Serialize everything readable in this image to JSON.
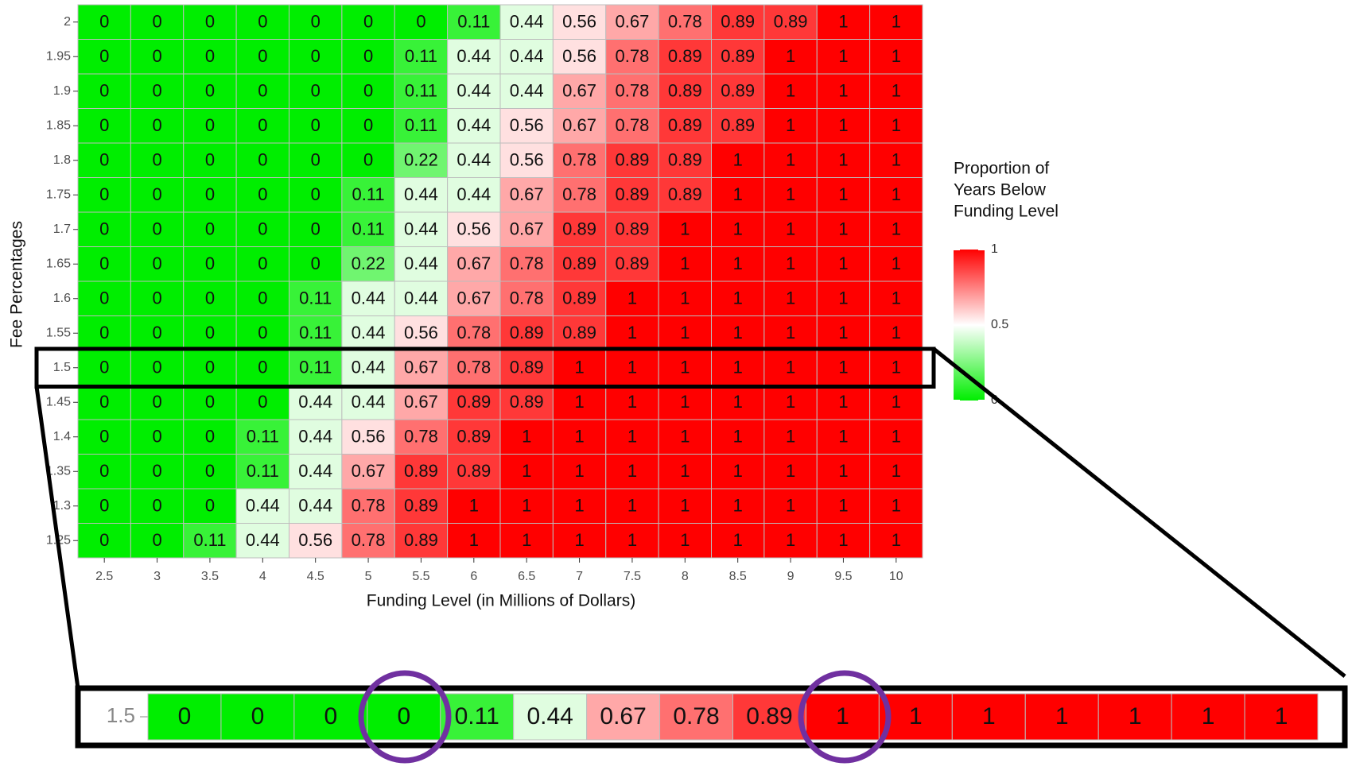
{
  "chart_data": {
    "type": "heatmap",
    "xlabel": "Funding Level (in Millions of Dollars)",
    "ylabel": "Fee Percentages",
    "legend_title": [
      "Proportion of",
      "Years Below",
      "Funding Level"
    ],
    "x": [
      2.5,
      3,
      3.5,
      4,
      4.5,
      5,
      5.5,
      6,
      6.5,
      7,
      7.5,
      8,
      8.5,
      9,
      9.5,
      10
    ],
    "y": [
      2,
      1.95,
      1.9,
      1.85,
      1.8,
      1.75,
      1.7,
      1.65,
      1.6,
      1.55,
      1.5,
      1.45,
      1.4,
      1.35,
      1.3,
      1.25
    ],
    "values": [
      [
        0,
        0,
        0,
        0,
        0,
        0,
        0,
        0.11,
        0.44,
        0.56,
        0.67,
        0.78,
        0.89,
        0.89,
        1,
        1
      ],
      [
        0,
        0,
        0,
        0,
        0,
        0,
        0.11,
        0.44,
        0.44,
        0.56,
        0.78,
        0.89,
        0.89,
        1,
        1,
        1
      ],
      [
        0,
        0,
        0,
        0,
        0,
        0,
        0.11,
        0.44,
        0.44,
        0.67,
        0.78,
        0.89,
        0.89,
        1,
        1,
        1
      ],
      [
        0,
        0,
        0,
        0,
        0,
        0,
        0.11,
        0.44,
        0.56,
        0.67,
        0.78,
        0.89,
        0.89,
        1,
        1,
        1
      ],
      [
        0,
        0,
        0,
        0,
        0,
        0,
        0.22,
        0.44,
        0.56,
        0.78,
        0.89,
        0.89,
        1,
        1,
        1,
        1
      ],
      [
        0,
        0,
        0,
        0,
        0,
        0.11,
        0.44,
        0.44,
        0.67,
        0.78,
        0.89,
        0.89,
        1,
        1,
        1,
        1
      ],
      [
        0,
        0,
        0,
        0,
        0,
        0.11,
        0.44,
        0.56,
        0.67,
        0.89,
        0.89,
        1,
        1,
        1,
        1,
        1
      ],
      [
        0,
        0,
        0,
        0,
        0,
        0.22,
        0.44,
        0.67,
        0.78,
        0.89,
        0.89,
        1,
        1,
        1,
        1,
        1
      ],
      [
        0,
        0,
        0,
        0,
        0.11,
        0.44,
        0.44,
        0.67,
        0.78,
        0.89,
        1,
        1,
        1,
        1,
        1,
        1
      ],
      [
        0,
        0,
        0,
        0,
        0.11,
        0.44,
        0.56,
        0.78,
        0.89,
        0.89,
        1,
        1,
        1,
        1,
        1,
        1
      ],
      [
        0,
        0,
        0,
        0,
        0.11,
        0.44,
        0.67,
        0.78,
        0.89,
        1,
        1,
        1,
        1,
        1,
        1,
        1
      ],
      [
        0,
        0,
        0,
        0,
        0.44,
        0.44,
        0.67,
        0.89,
        0.89,
        1,
        1,
        1,
        1,
        1,
        1,
        1
      ],
      [
        0,
        0,
        0,
        0.11,
        0.44,
        0.56,
        0.78,
        0.89,
        1,
        1,
        1,
        1,
        1,
        1,
        1,
        1
      ],
      [
        0,
        0,
        0,
        0.11,
        0.44,
        0.67,
        0.89,
        0.89,
        1,
        1,
        1,
        1,
        1,
        1,
        1,
        1
      ],
      [
        0,
        0,
        0,
        0.44,
        0.44,
        0.78,
        0.89,
        1,
        1,
        1,
        1,
        1,
        1,
        1,
        1,
        1
      ],
      [
        0,
        0,
        0.11,
        0.44,
        0.56,
        0.78,
        0.89,
        1,
        1,
        1,
        1,
        1,
        1,
        1,
        1,
        1
      ]
    ],
    "colors": {
      "low": "#00ee00",
      "mid": "#ffffff",
      "high": "#ff0000"
    },
    "clim": [
      0,
      1
    ],
    "cticks": [
      0,
      0.5,
      1
    ]
  }
}
